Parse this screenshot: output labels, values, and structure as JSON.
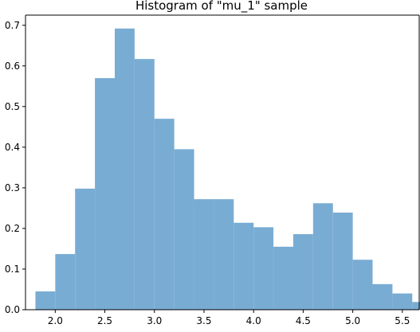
{
  "chart_data": {
    "type": "bar",
    "title": "Histogram of \"mu_1\" sample",
    "xlabel": "",
    "ylabel": "",
    "xlim": [
      1.7,
      5.67
    ],
    "ylim": [
      0,
      0.725
    ],
    "x_ticks": [
      2.0,
      2.5,
      3.0,
      3.5,
      4.0,
      4.5,
      5.0,
      5.5
    ],
    "y_ticks": [
      0.0,
      0.1,
      0.2,
      0.3,
      0.4,
      0.5,
      0.6,
      0.7
    ],
    "bar_color": "#79acd3",
    "bins": [
      {
        "x0": 1.8,
        "x1": 2.0,
        "height": 0.045
      },
      {
        "x0": 2.0,
        "x1": 2.2,
        "height": 0.137
      },
      {
        "x0": 2.2,
        "x1": 2.4,
        "height": 0.298
      },
      {
        "x0": 2.4,
        "x1": 2.6,
        "height": 0.57
      },
      {
        "x0": 2.6,
        "x1": 2.8,
        "height": 0.692
      },
      {
        "x0": 2.8,
        "x1": 3.0,
        "height": 0.617
      },
      {
        "x0": 3.0,
        "x1": 3.2,
        "height": 0.47
      },
      {
        "x0": 3.2,
        "x1": 3.4,
        "height": 0.395
      },
      {
        "x0": 3.4,
        "x1": 3.6,
        "height": 0.272
      },
      {
        "x0": 3.6,
        "x1": 3.8,
        "height": 0.272
      },
      {
        "x0": 3.8,
        "x1": 4.0,
        "height": 0.214
      },
      {
        "x0": 4.0,
        "x1": 4.2,
        "height": 0.203
      },
      {
        "x0": 4.2,
        "x1": 4.4,
        "height": 0.155
      },
      {
        "x0": 4.4,
        "x1": 4.6,
        "height": 0.186
      },
      {
        "x0": 4.6,
        "x1": 4.8,
        "height": 0.262
      },
      {
        "x0": 4.8,
        "x1": 5.0,
        "height": 0.239
      },
      {
        "x0": 5.0,
        "x1": 5.2,
        "height": 0.123
      },
      {
        "x0": 5.2,
        "x1": 5.4,
        "height": 0.063
      },
      {
        "x0": 5.4,
        "x1": 5.6,
        "height": 0.04
      },
      {
        "x0": 5.6,
        "x1": 5.8,
        "height": 0.019
      }
    ]
  }
}
